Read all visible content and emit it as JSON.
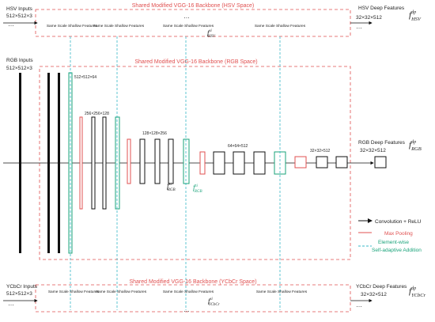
{
  "hsv": {
    "backbone_title": "Shared Modified VGG-16 Backbone (HSV Space)",
    "inputs_label": "HSV Inputs",
    "inputs_dim": "512×512×3",
    "features_label": "Same Scale Shallow Features",
    "f_label": "f",
    "f_sup": "si",
    "f_sub": "HSV",
    "deep_label": "HSV Deep Features",
    "deep_dim": "32×32×512",
    "deep_f": "f",
    "deep_sup": "dp",
    "deep_sub": "HSV",
    "dots": "…"
  },
  "rgb": {
    "backbone_title": "Shared Modified VGG-16 Backbone (RGB Space)",
    "inputs_label": "RGB Inputs",
    "inputs_dim": "512×512×3",
    "dim_1": "512×512×64",
    "dim_2": "256×256×128",
    "dim_3": "128×128×256",
    "dim_4": "64×64×512",
    "dim_5": "32×32×512",
    "f_black": "f",
    "f_black_sup": "si",
    "f_black_sub": "RGB",
    "f_green": "f",
    "f_green_sup": "si",
    "f_green_sub": "RGB",
    "deep_label": "RGB  Deep Features",
    "deep_dim": "32×32×512",
    "deep_f": "f",
    "deep_sup": "dp",
    "deep_sub": "RGB"
  },
  "ycbcr": {
    "backbone_title": "Shared Modified VGG-16 Backbone (YCbCr Space)",
    "inputs_label": "YCbCr Inputs",
    "inputs_dim": "512×512×3",
    "features_label": "Same Scale Shallow Features",
    "f_label": "f",
    "f_sup": "si",
    "f_sub": "YCbCr",
    "deep_label": "YCbCr Deep Features",
    "deep_dim": "32×32×512",
    "deep_f": "f",
    "deep_sup": "dp",
    "deep_sub": "YCbCr",
    "dots": "…"
  },
  "legend": {
    "conv": "Convolution + ReLU",
    "pool": "Max Pooling",
    "add_line1": "Element-wise",
    "add_line2": "Self-adaptive Addition"
  },
  "colors": {
    "red": "#e05050",
    "green": "#1aa37a",
    "cyan": "#38b8c8",
    "black": "#111111"
  }
}
